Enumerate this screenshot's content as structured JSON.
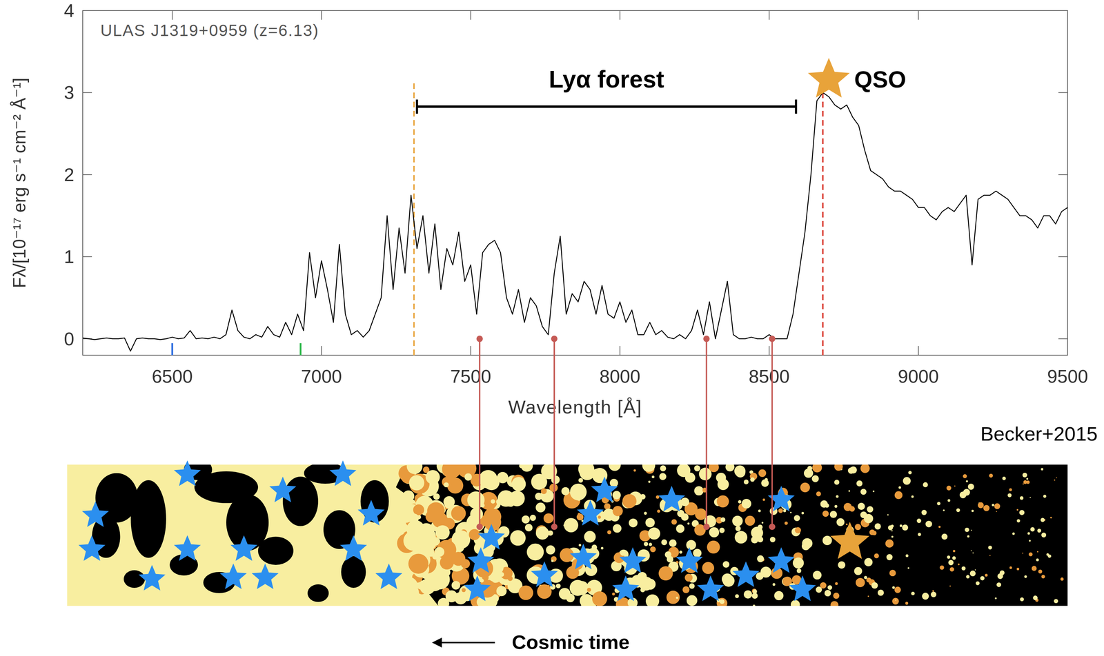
{
  "chart_data": {
    "type": "line",
    "title": "ULAS J1319+0959 (z=6.13)",
    "x_label": "Wavelength [Å]",
    "y_label": "Fλ/[10⁻¹⁷ erg s⁻¹ cm⁻² Å⁻¹]",
    "xlim": [
      6200,
      9500
    ],
    "ylim": [
      -0.2,
      4
    ],
    "xticks": [
      6500,
      7000,
      7500,
      8000,
      8500,
      9000,
      9500
    ],
    "yticks": [
      0,
      1,
      2,
      3,
      4
    ],
    "color": "#000000",
    "x": [
      6200,
      6220,
      6240,
      6260,
      6280,
      6300,
      6320,
      6340,
      6360,
      6380,
      6400,
      6420,
      6440,
      6460,
      6480,
      6500,
      6520,
      6540,
      6560,
      6580,
      6600,
      6620,
      6640,
      6660,
      6680,
      6700,
      6720,
      6740,
      6760,
      6780,
      6800,
      6820,
      6840,
      6860,
      6880,
      6900,
      6920,
      6940,
      6960,
      6980,
      7000,
      7020,
      7040,
      7060,
      7080,
      7100,
      7120,
      7140,
      7160,
      7180,
      7200,
      7220,
      7240,
      7260,
      7280,
      7300,
      7320,
      7340,
      7360,
      7380,
      7400,
      7420,
      7440,
      7460,
      7480,
      7500,
      7520,
      7540,
      7560,
      7580,
      7600,
      7620,
      7640,
      7660,
      7680,
      7700,
      7720,
      7740,
      7760,
      7780,
      7800,
      7820,
      7840,
      7860,
      7880,
      7900,
      7920,
      7940,
      7960,
      7980,
      8000,
      8020,
      8040,
      8060,
      8080,
      8100,
      8120,
      8140,
      8160,
      8180,
      8200,
      8220,
      8240,
      8260,
      8280,
      8300,
      8320,
      8340,
      8360,
      8380,
      8400,
      8420,
      8440,
      8460,
      8480,
      8500,
      8520,
      8540,
      8560,
      8580,
      8600,
      8620,
      8640,
      8660,
      8680,
      8700,
      8720,
      8740,
      8760,
      8780,
      8800,
      8820,
      8840,
      8860,
      8880,
      8900,
      8920,
      8940,
      8960,
      8980,
      9000,
      9020,
      9040,
      9060,
      9080,
      9100,
      9120,
      9140,
      9160,
      9180,
      9200,
      9220,
      9240,
      9260,
      9280,
      9300,
      9320,
      9340,
      9360,
      9380,
      9400,
      9420,
      9440,
      9460,
      9480,
      9500
    ],
    "values": [
      0.01,
      0.0,
      -0.01,
      0.0,
      0.01,
      0.0,
      0.0,
      0.01,
      -0.15,
      0.0,
      0.01,
      0.0,
      0.0,
      -0.01,
      0.0,
      0.02,
      0.0,
      0.01,
      0.1,
      0.0,
      0.01,
      0.0,
      0.02,
      0.0,
      0.05,
      0.35,
      0.1,
      0.02,
      0.0,
      0.05,
      0.02,
      0.15,
      0.05,
      0.02,
      0.2,
      0.05,
      0.3,
      0.1,
      1.05,
      0.5,
      0.95,
      0.6,
      0.2,
      1.15,
      0.3,
      0.05,
      0.1,
      0.02,
      0.1,
      0.3,
      0.5,
      1.5,
      0.6,
      1.35,
      0.8,
      1.75,
      1.1,
      1.5,
      0.8,
      1.4,
      0.6,
      1.1,
      0.9,
      1.3,
      0.7,
      0.9,
      0.3,
      1.05,
      1.15,
      1.2,
      1.05,
      0.5,
      0.3,
      0.6,
      0.2,
      0.5,
      0.4,
      0.15,
      0.05,
      0.8,
      1.25,
      0.3,
      0.55,
      0.45,
      0.7,
      0.6,
      0.3,
      0.65,
      0.3,
      0.25,
      0.45,
      0.2,
      0.35,
      0.05,
      0.05,
      0.2,
      0.05,
      0.1,
      0.02,
      0.0,
      0.05,
      0.0,
      0.1,
      0.35,
      0.05,
      0.45,
      0.0,
      0.35,
      0.7,
      0.05,
      0.0,
      0.0,
      0.02,
      0.0,
      0.0,
      0.05,
      0.0,
      0.0,
      0.0,
      0.3,
      0.8,
      1.3,
      2.0,
      2.9,
      3.0,
      2.95,
      2.85,
      2.8,
      2.85,
      2.7,
      2.6,
      2.3,
      2.05,
      2.0,
      1.95,
      1.85,
      1.8,
      1.8,
      1.75,
      1.7,
      1.6,
      1.6,
      1.5,
      1.45,
      1.55,
      1.6,
      1.55,
      1.65,
      1.75,
      0.9,
      1.7,
      1.75,
      1.75,
      1.8,
      1.75,
      1.7,
      1.6,
      1.5,
      1.5,
      1.45,
      1.35,
      1.5,
      1.5,
      1.4,
      1.55,
      1.6
    ],
    "annotations": {
      "lya_forest": {
        "label": "Lyα forest",
        "x": [
          7320,
          8590
        ]
      },
      "qso": {
        "label": "QSO",
        "x": 8700,
        "color": "#e8a33a"
      },
      "lines": [
        {
          "x": 7310,
          "color": "#e8a33a",
          "line_style": "dashed"
        },
        {
          "x": 8680,
          "color": "#d9362b",
          "line_style": "dashed"
        }
      ],
      "markers": [
        {
          "x": 6500,
          "color": "#2f6fe0"
        },
        {
          "x": 6930,
          "color": "#2db84a"
        }
      ],
      "pins": [
        7530,
        7780,
        8290,
        8510
      ],
      "pin_color": "#c55a55",
      "credit": "Becker+2015",
      "time_arrow": "Cosmic time",
      "galaxy_color": "#2b8fef"
    }
  }
}
